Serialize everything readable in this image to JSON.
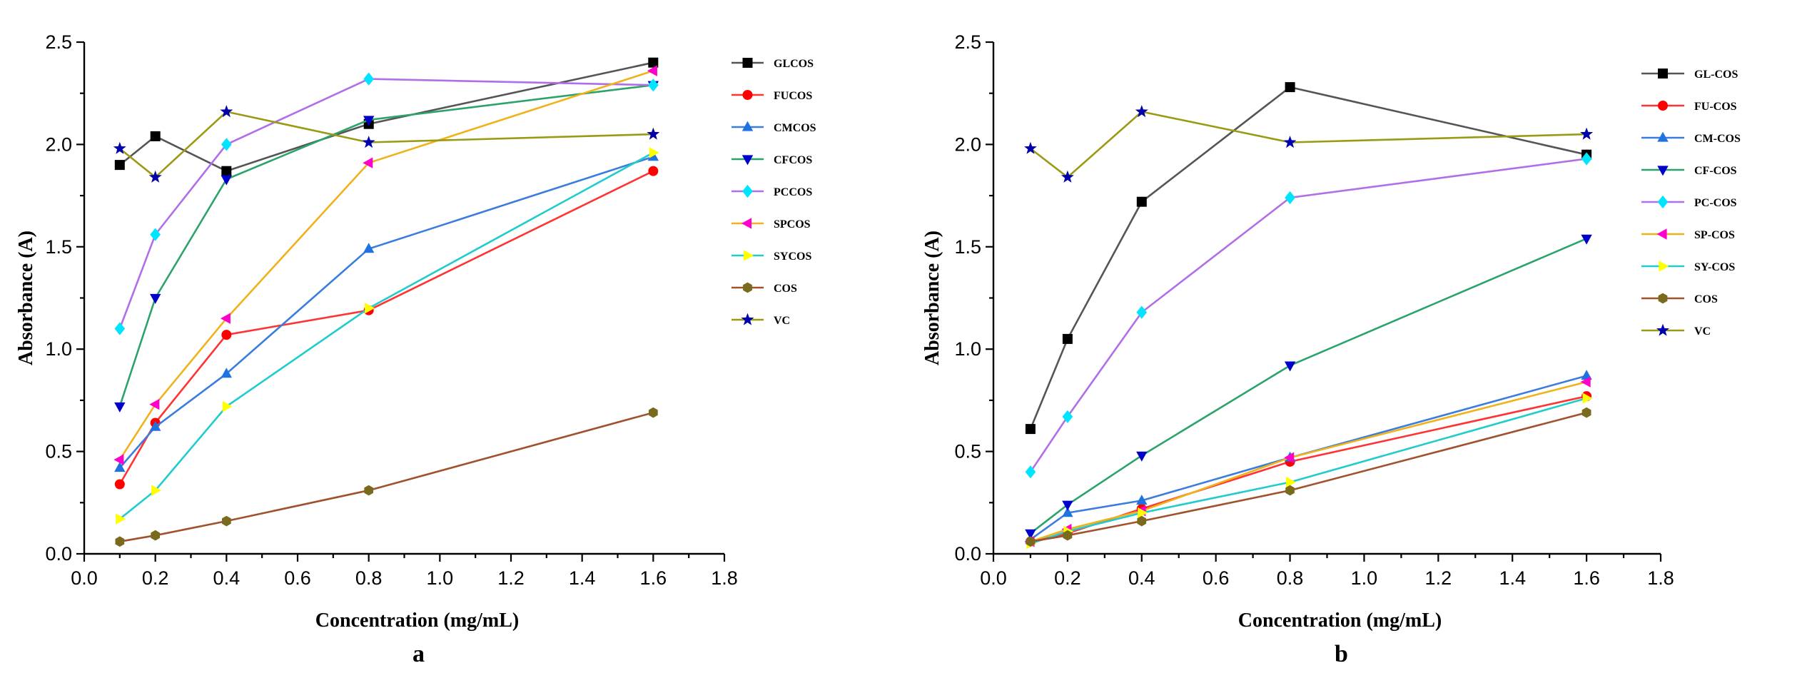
{
  "chart_data": [
    {
      "type": "line",
      "panel_label": "a",
      "title": "",
      "xlabel": "Concentration (mg/mL)",
      "ylabel": "Absorbance (A)",
      "xlim": [
        0.0,
        1.8
      ],
      "ylim": [
        0.0,
        2.5
      ],
      "xticks": [
        "0.0",
        "0.2",
        "0.4",
        "0.6",
        "0.8",
        "1.0",
        "1.2",
        "1.4",
        "1.6",
        "1.8"
      ],
      "yticks": [
        "0.0",
        "0.5",
        "1.0",
        "1.5",
        "2.0",
        "2.5"
      ],
      "grid": false,
      "legend": "right",
      "x": [
        0.1,
        0.2,
        0.4,
        0.8,
        1.6
      ],
      "series": [
        {
          "name": "GLCOS",
          "color": "#000000",
          "marker": "square",
          "values": [
            1.9,
            2.04,
            1.87,
            2.1,
            2.4
          ]
        },
        {
          "name": "FUCOS",
          "color": "#ff0000",
          "marker": "circle",
          "values": [
            0.34,
            0.64,
            1.07,
            1.19,
            1.87
          ]
        },
        {
          "name": "CMCOS",
          "color": "#1e73e0",
          "marker": "triangle-up",
          "values": [
            0.42,
            0.62,
            0.88,
            1.49,
            1.94
          ]
        },
        {
          "name": "CFCOS",
          "color": "#0000cc",
          "marker": "triangle-down",
          "values": [
            0.72,
            1.25,
            1.83,
            2.12,
            2.29
          ]
        },
        {
          "name": "PCCOS",
          "color": "#00e5ff",
          "marker": "diamond",
          "values": [
            1.1,
            1.56,
            2.0,
            2.32,
            2.29
          ]
        },
        {
          "name": "SPCOS",
          "color": "#ff00cc",
          "marker": "triangle-left",
          "values": [
            0.46,
            0.73,
            1.15,
            1.91,
            2.36
          ]
        },
        {
          "name": "SYCOS",
          "color": "#ffff00",
          "marker": "triangle-right",
          "values": [
            0.17,
            0.31,
            0.72,
            1.2,
            1.96
          ]
        },
        {
          "name": "COS",
          "color": "#7a6a1e",
          "marker": "hexagon",
          "values": [
            0.06,
            0.09,
            0.16,
            0.31,
            0.69
          ]
        },
        {
          "name": "VC",
          "color": "#0000aa",
          "marker": "star",
          "values": [
            1.98,
            1.84,
            2.16,
            2.01,
            2.05
          ]
        }
      ]
    },
    {
      "type": "line",
      "panel_label": "b",
      "title": "",
      "xlabel": "Concentration (mg/mL)",
      "ylabel": "Absorbance (A)",
      "xlim": [
        0.0,
        1.8
      ],
      "ylim": [
        0.0,
        2.5
      ],
      "xticks": [
        "0.0",
        "0.2",
        "0.4",
        "0.6",
        "0.8",
        "1.0",
        "1.2",
        "1.4",
        "1.6",
        "1.8"
      ],
      "yticks": [
        "0.0",
        "0.5",
        "1.0",
        "1.5",
        "2.0",
        "2.5"
      ],
      "grid": false,
      "legend": "right",
      "x": [
        0.1,
        0.2,
        0.4,
        0.8,
        1.6
      ],
      "series": [
        {
          "name": "GL-COS",
          "color": "#000000",
          "marker": "square",
          "values": [
            0.61,
            1.05,
            1.72,
            2.28,
            1.95
          ]
        },
        {
          "name": "FU-COS",
          "color": "#ff0000",
          "marker": "circle",
          "values": [
            0.06,
            0.1,
            0.22,
            0.45,
            0.77
          ]
        },
        {
          "name": "CM-COS",
          "color": "#1e73e0",
          "marker": "triangle-up",
          "values": [
            0.07,
            0.2,
            0.26,
            0.47,
            0.87
          ]
        },
        {
          "name": "CF-COS",
          "color": "#0000cc",
          "marker": "triangle-down",
          "values": [
            0.1,
            0.24,
            0.48,
            0.92,
            1.54
          ]
        },
        {
          "name": "PC-COS",
          "color": "#00e5ff",
          "marker": "diamond",
          "values": [
            0.4,
            0.67,
            1.18,
            1.74,
            1.93
          ]
        },
        {
          "name": "SP-COS",
          "color": "#ff00cc",
          "marker": "triangle-left",
          "values": [
            0.06,
            0.12,
            0.21,
            0.47,
            0.84
          ]
        },
        {
          "name": "SY-COS",
          "color": "#ffff00",
          "marker": "triangle-right",
          "values": [
            0.05,
            0.11,
            0.2,
            0.35,
            0.76
          ]
        },
        {
          "name": "COS",
          "color": "#7a6a1e",
          "marker": "hexagon",
          "values": [
            0.06,
            0.09,
            0.16,
            0.31,
            0.69
          ]
        },
        {
          "name": "VC",
          "color": "#0000aa",
          "marker": "star",
          "values": [
            1.98,
            1.84,
            2.16,
            2.01,
            2.05
          ]
        }
      ]
    }
  ],
  "line_colors": {
    "GLCOS": "#555555",
    "FUCOS": "#ff3333",
    "CMCOS": "#3b7ddd",
    "CFCOS": "#2ca36b",
    "PCCOS": "#b06ee8",
    "SPCOS": "#f0b21a",
    "SYCOS": "#22cccc",
    "COS": "#a0522d",
    "VC": "#9a9a14",
    "GL-COS": "#555555",
    "FU-COS": "#ff3333",
    "CM-COS": "#3b7ddd",
    "CF-COS": "#2ca36b",
    "PC-COS": "#b06ee8",
    "SP-COS": "#f0b21a",
    "SY-COS": "#22cccc"
  }
}
